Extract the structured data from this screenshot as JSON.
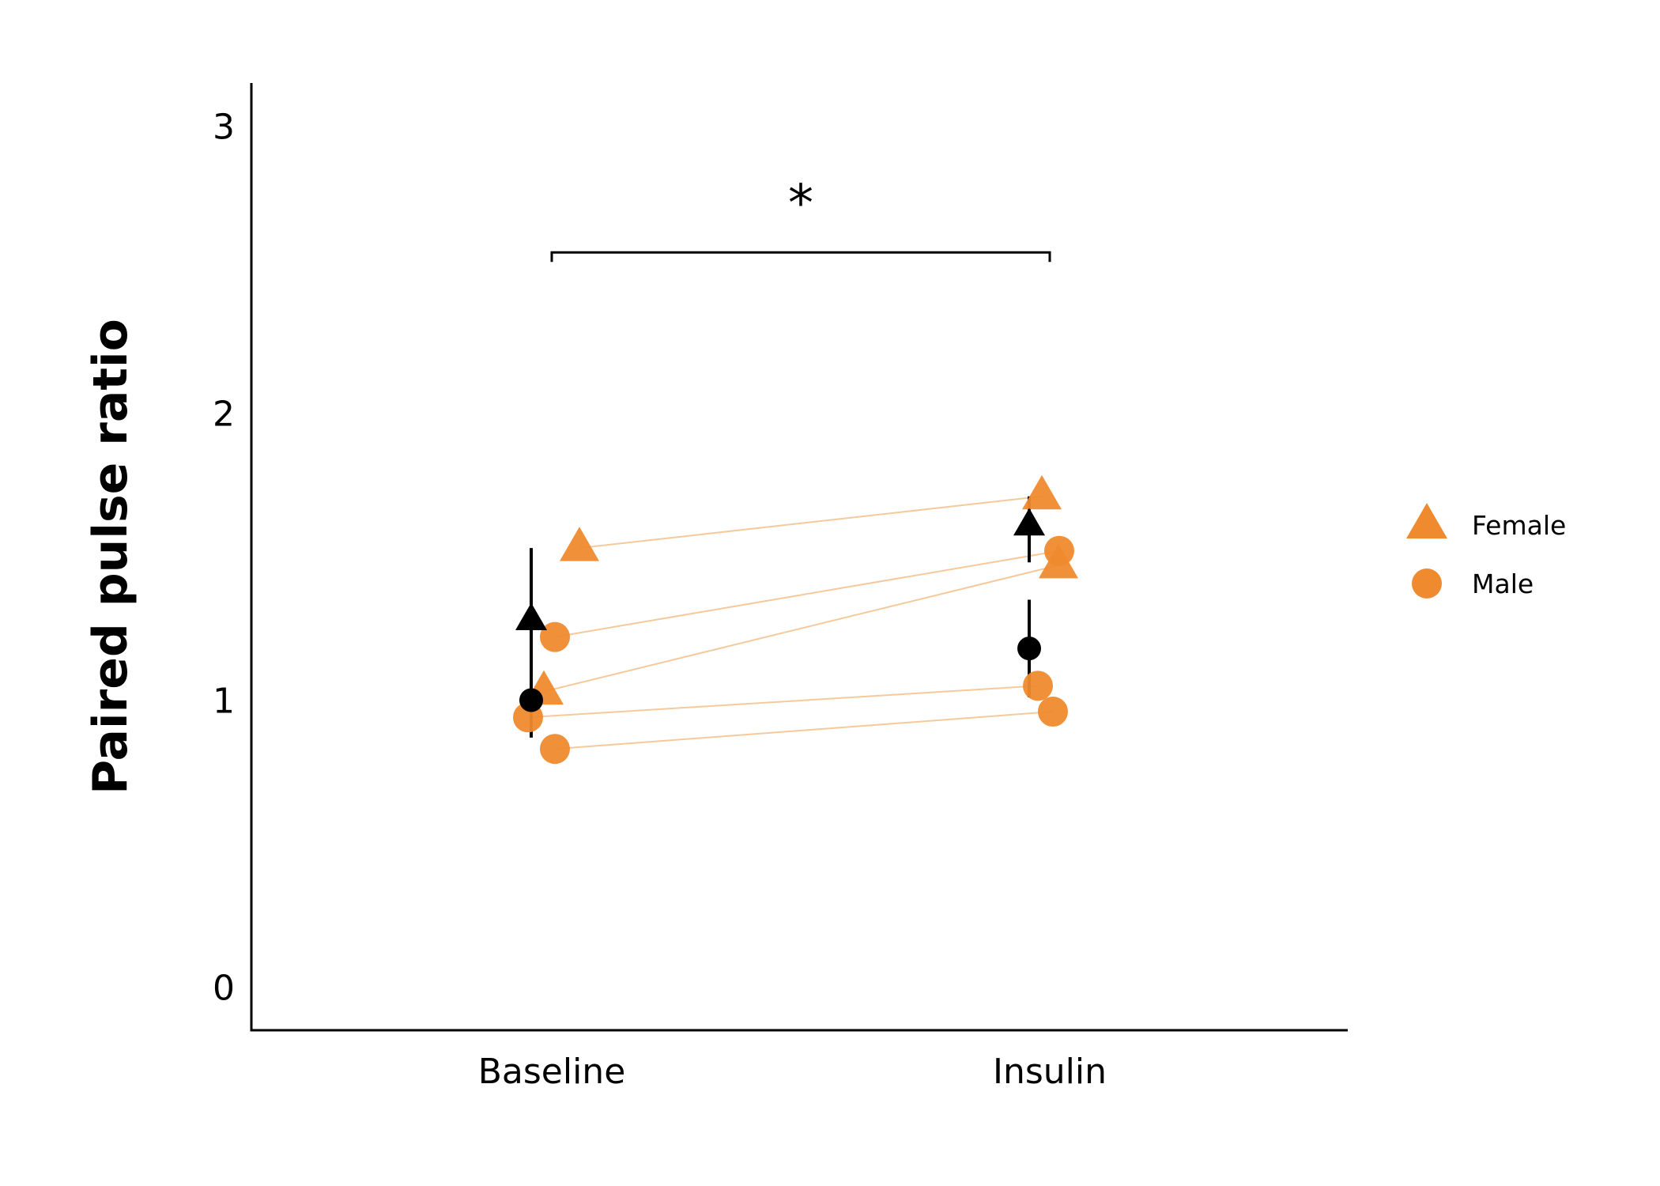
{
  "chart_data": {
    "type": "scatter",
    "title": "",
    "xlabel": "",
    "ylabel": "Paired pulse ratio",
    "ylim": [
      -0.15,
      3.15
    ],
    "yticks": [
      0,
      1,
      2,
      3
    ],
    "categories": [
      "Baseline",
      "Insulin"
    ],
    "grid": false,
    "legend_position": "right",
    "colors": {
      "points": "#ef8a2e",
      "summary": "#000000",
      "lines": "#f6c99c"
    },
    "series": [
      {
        "name": "Female",
        "marker": "triangle",
        "subjects": [
          {
            "values": [
              1.53,
              1.71
            ]
          },
          {
            "values": [
              1.03,
              1.47
            ]
          }
        ],
        "summary": {
          "mean": [
            1.28,
            1.61
          ],
          "err_low": [
            0.87,
            1.48
          ],
          "err_high": [
            1.53,
            1.71
          ]
        }
      },
      {
        "name": "Male",
        "marker": "circle",
        "subjects": [
          {
            "values": [
              1.22,
              1.52
            ]
          },
          {
            "values": [
              0.94,
              1.05
            ]
          },
          {
            "values": [
              0.83,
              0.96
            ]
          }
        ],
        "summary": {
          "mean": [
            1.0,
            1.18
          ],
          "err_low": [
            0.87,
            1.01
          ],
          "err_high": [
            1.28,
            1.35
          ]
        }
      }
    ],
    "significance": {
      "from": "Baseline",
      "to": "Insulin",
      "y": 2.56,
      "label": "*"
    }
  }
}
